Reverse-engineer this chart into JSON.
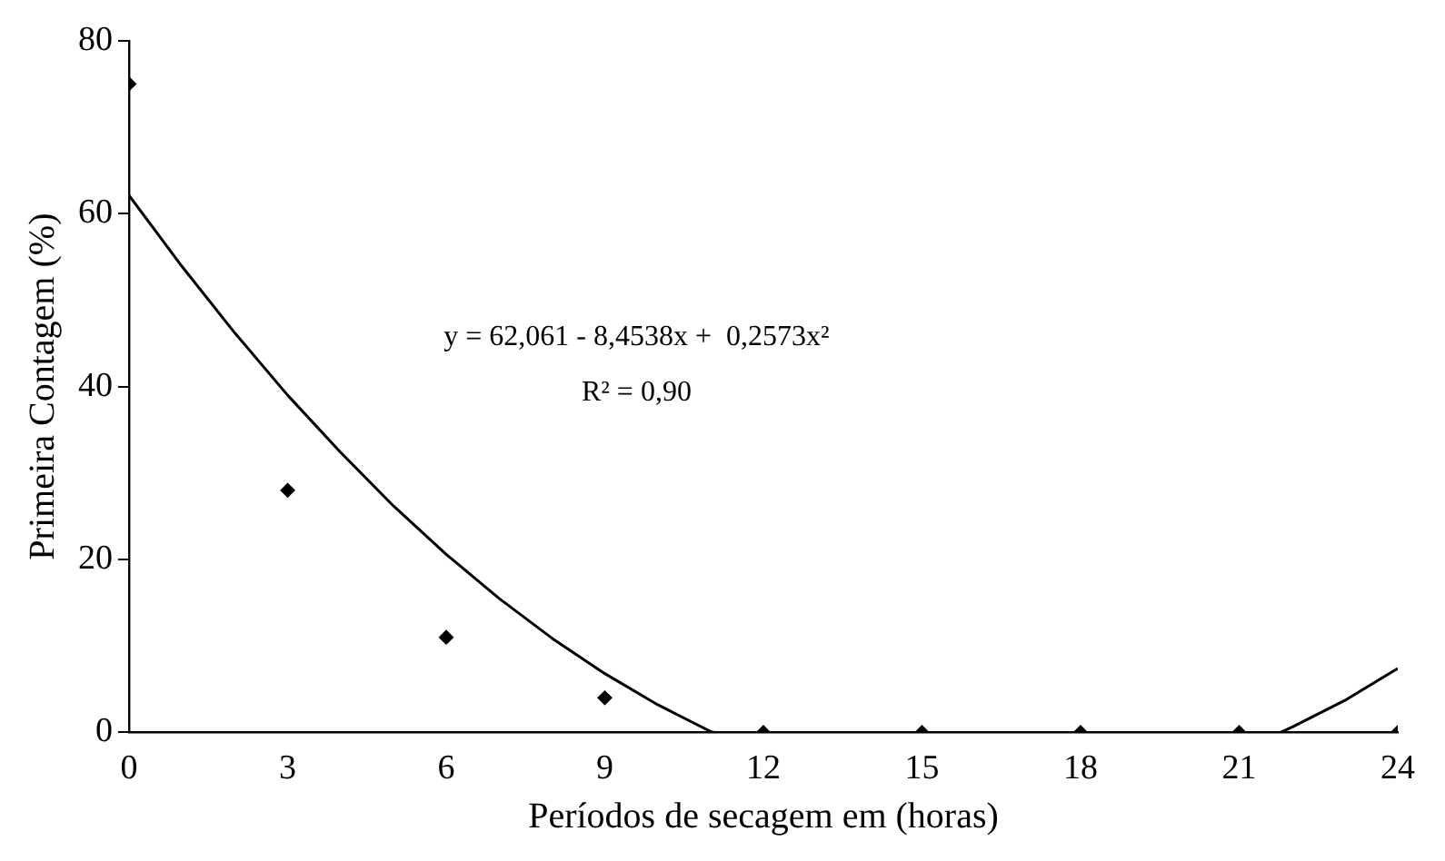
{
  "chart_data": {
    "type": "scatter",
    "xlabel": "Períodos de secagem em (horas)",
    "ylabel": "Primeira Contagem (%)",
    "x": [
      0,
      3,
      6,
      9,
      12,
      15,
      18,
      21,
      24
    ],
    "series": [
      {
        "type": "scatter",
        "color": "#000000",
        "values": [
          75,
          28,
          11,
          4,
          0,
          0,
          0,
          0,
          0
        ]
      },
      {
        "type": "line",
        "color": "#000000",
        "marker": "none",
        "x": [
          0,
          1,
          2,
          3,
          4,
          5,
          6,
          7,
          8,
          9,
          10,
          11,
          11.07,
          16,
          21.78,
          22,
          23,
          24
        ],
        "values": [
          62.1,
          53.9,
          46.2,
          39,
          32.4,
          26.2,
          20.6,
          15.5,
          10.9,
          6.8,
          3.2,
          0.1,
          0,
          null,
          0,
          0.6,
          3.7,
          7.4
        ]
      }
    ],
    "marker": "diamond",
    "xlim": [
      0,
      24
    ],
    "xticks": [
      0,
      3,
      6,
      9,
      12,
      15,
      18,
      21,
      24
    ],
    "ylim": [
      0,
      80
    ],
    "yticks": [
      0,
      20,
      40,
      60,
      80
    ],
    "grid": false,
    "legend": false,
    "annotations": [
      "y = 62,061 - 8,4538x +  0,2573x²",
      "R² = 0,90"
    ]
  }
}
